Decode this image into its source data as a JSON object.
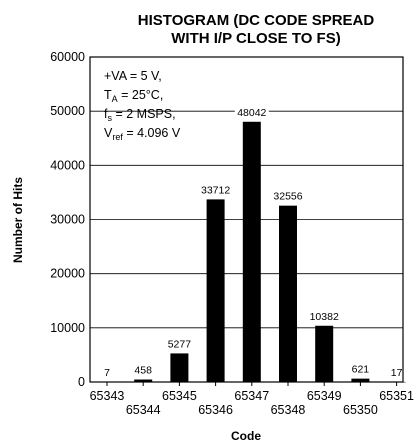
{
  "chart_data": {
    "type": "bar",
    "title_line1": "HISTOGRAM (DC CODE SPREAD",
    "title_line2": "WITH I/P CLOSE TO FS)",
    "xlabel": "Code",
    "ylabel": "Number of Hits",
    "categories": [
      "65343",
      "65344",
      "65345",
      "65346",
      "65347",
      "65348",
      "65349",
      "65350",
      "65351"
    ],
    "values": [
      7,
      458,
      5277,
      33712,
      48042,
      32556,
      10382,
      621,
      17
    ],
    "ylim": [
      0,
      60000
    ],
    "yticks": [
      "0",
      "10000",
      "20000",
      "30000",
      "40000",
      "50000",
      "60000"
    ],
    "grid": "horizontal",
    "bar_color": "#000000",
    "annotation": {
      "va": "+VA = 5 V,",
      "ta_main": "T",
      "ta_sub": "A",
      "ta_rest": " = 25°C,",
      "fs_main": "f",
      "fs_sub": "s",
      "fs_rest": " = 2 MSPS,",
      "vref_main": "V",
      "vref_sub": "ref",
      "vref_rest": " = 4.096 V"
    }
  }
}
